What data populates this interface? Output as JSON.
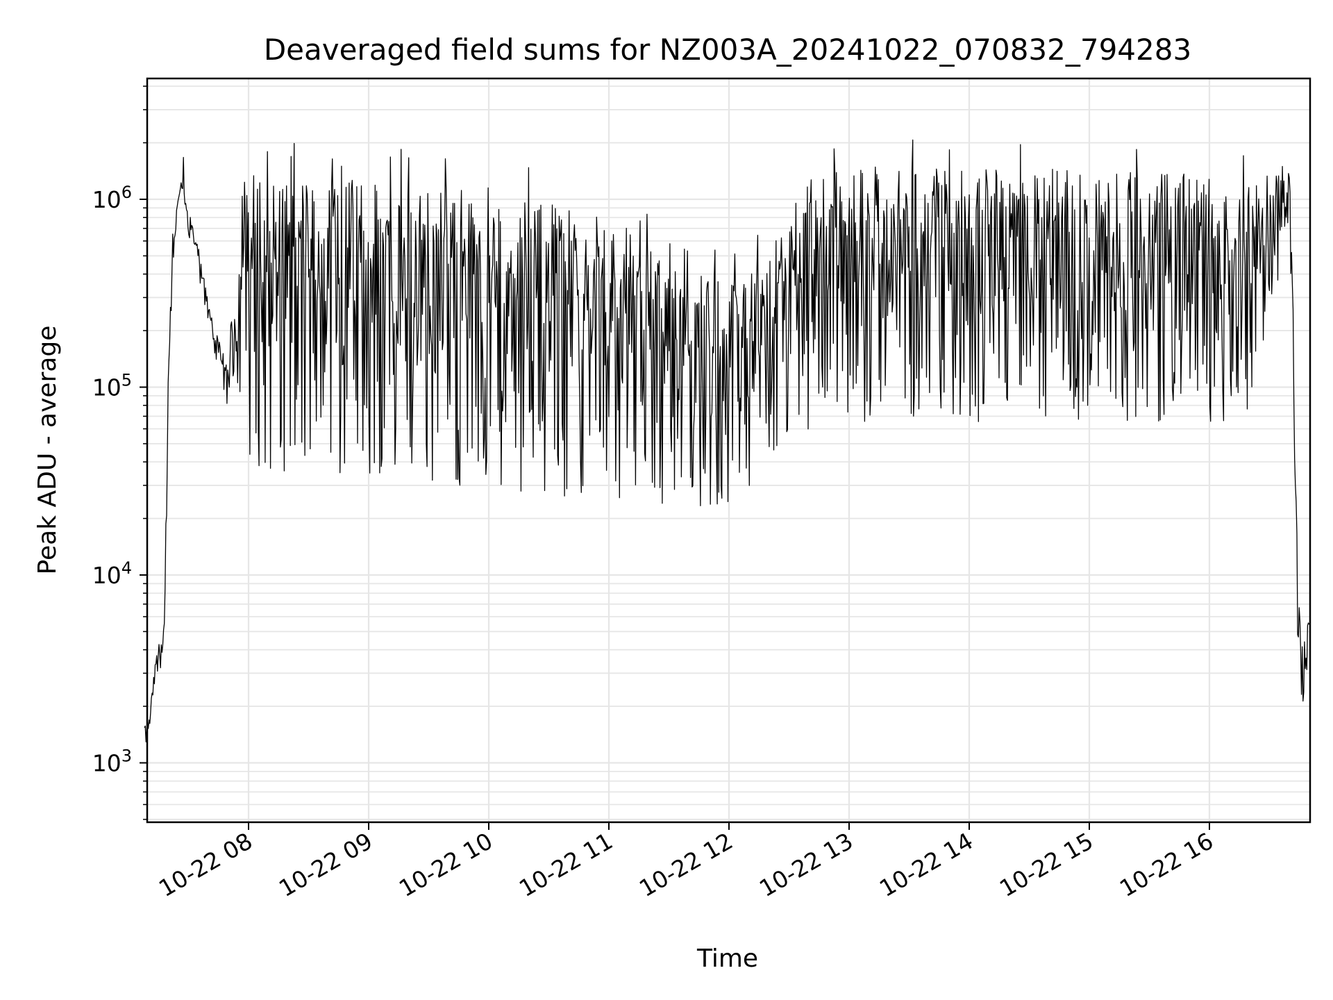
{
  "chart_data": {
    "type": "line",
    "title": "Deaveraged field sums for NZ003A_20241022_070832_794283",
    "xlabel": "Time",
    "ylabel": "Peak ADU - average",
    "x_scale": "time",
    "y_scale": "log",
    "xlim": [
      "2024-10-22 07:08",
      "2024-10-22 16:50"
    ],
    "ylim": [
      480,
      4400000
    ],
    "x_tick_labels": [
      "10-22 08",
      "10-22 09",
      "10-22 10",
      "10-22 11",
      "10-22 12",
      "10-22 13",
      "10-22 14",
      "10-22 15",
      "10-22 16"
    ],
    "y_tick_labels": [
      {
        "base": "10",
        "exp": "3",
        "value": 1000
      },
      {
        "base": "10",
        "exp": "4",
        "value": 10000
      },
      {
        "base": "10",
        "exp": "5",
        "value": 100000
      },
      {
        "base": "10",
        "exp": "6",
        "value": 1000000
      }
    ],
    "grid": true,
    "line_color": "#000000",
    "grid_color": "#e6e6e6",
    "series": [
      {
        "x": [
          "07:08",
          "07:10",
          "07:12",
          "07:14",
          "07:16",
          "07:18",
          "07:19",
          "07:20",
          "07:22",
          "07:24",
          "07:26",
          "07:28",
          "07:30",
          "07:35",
          "07:40",
          "07:45",
          "07:50",
          "07:55",
          "08:00",
          "08:10",
          "08:20",
          "08:30",
          "08:40",
          "08:50",
          "09:00",
          "09:10",
          "09:20",
          "09:30",
          "09:40",
          "09:50",
          "10:00",
          "10:10",
          "10:20",
          "10:30",
          "10:40",
          "10:50",
          "11:00",
          "11:10",
          "11:20",
          "11:30",
          "11:40",
          "11:50",
          "12:00",
          "12:10",
          "12:20",
          "12:30",
          "12:40",
          "12:50",
          "13:00",
          "13:10",
          "13:20",
          "13:30",
          "13:40",
          "13:50",
          "14:00",
          "14:10",
          "14:20",
          "14:30",
          "14:40",
          "14:50",
          "15:00",
          "15:10",
          "15:20",
          "15:30",
          "15:40",
          "15:50",
          "16:00",
          "16:10",
          "16:20",
          "16:30",
          "16:35",
          "16:40",
          "16:42",
          "16:44",
          "16:46",
          "16:48",
          "16:50"
        ],
        "upper": [
          1600,
          1700,
          2500,
          4000,
          4500,
          6000,
          20000,
          150000,
          500000,
          900000,
          1300000,
          1200000,
          900000,
          550000,
          300000,
          180000,
          130000,
          1400000,
          1400000,
          1400000,
          1350000,
          1300000,
          1300000,
          1300000,
          1300000,
          1250000,
          1250000,
          1200000,
          1200000,
          1200000,
          1150000,
          1100000,
          1000000,
          1000000,
          950000,
          900000,
          800000,
          700000,
          600000,
          500000,
          450000,
          400000,
          350000,
          400000,
          500000,
          1000000,
          1400000,
          1400000,
          1500000,
          1500000,
          1500000,
          1500000,
          1500000,
          1500000,
          1500000,
          1500000,
          1500000,
          1450000,
          1450000,
          1450000,
          1450000,
          1400000,
          1400000,
          1400000,
          1400000,
          1350000,
          1350000,
          1300000,
          1300000,
          1400000,
          1500000,
          1600000,
          300000,
          10000,
          4000,
          5000,
          6000
        ],
        "lower": [
          1200,
          1300,
          1700,
          2500,
          3000,
          3500,
          10000,
          100000,
          300000,
          700000,
          900000,
          800000,
          600000,
          350000,
          200000,
          120000,
          70000,
          45000,
          40000,
          35000,
          33000,
          32000,
          32000,
          31000,
          30000,
          30000,
          30000,
          29000,
          29000,
          28000,
          28000,
          28000,
          27000,
          27000,
          26000,
          26000,
          25000,
          24000,
          23000,
          22000,
          22000,
          21000,
          22000,
          25000,
          35000,
          45000,
          55000,
          60000,
          65000,
          65000,
          65000,
          65000,
          65000,
          65000,
          65000,
          65000,
          65000,
          65000,
          65000,
          65000,
          65000,
          65000,
          65000,
          65000,
          65000,
          65000,
          65000,
          65000,
          70000,
          200000,
          400000,
          600000,
          80000,
          3000,
          2000,
          2000,
          2500
        ]
      }
    ]
  }
}
